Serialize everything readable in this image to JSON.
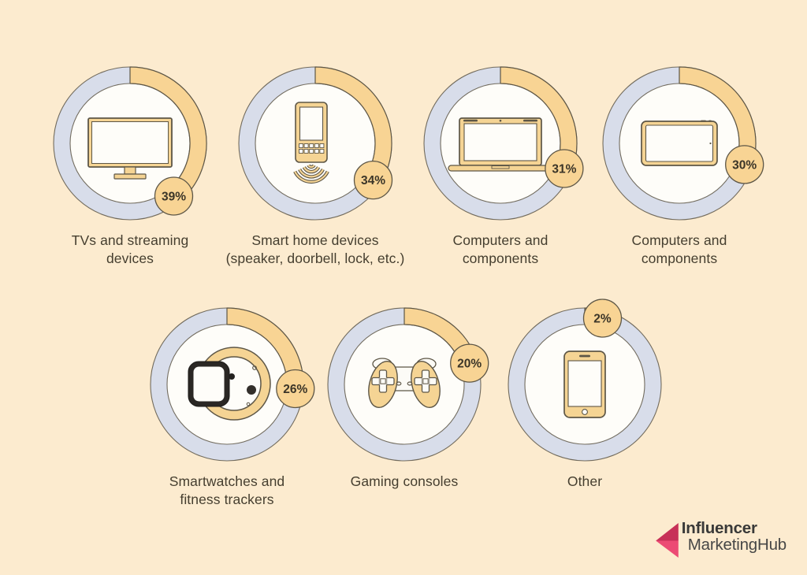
{
  "colors": {
    "background": "#FCEBCF",
    "ring_track": "#D8DDEA",
    "accent_yellow": "#F8D494",
    "icon_yellow": "#F5D494",
    "outline": "#5D5646",
    "inner_circle": "#FEFDF9",
    "label_text": "#453E2F",
    "badge_text": "#3B3528",
    "logo_pink_dark": "#C73158",
    "logo_pink_light": "#EC4B74",
    "logo_text_dark": "#393938",
    "logo_text_light": "#474746"
  },
  "charts": [
    {
      "label": "TVs and streaming\ndevices",
      "value": 39,
      "value_label": "39%",
      "icon": "tv-icon"
    },
    {
      "label": "Smart home devices\n(speaker, doorbell, lock, etc.)",
      "value": 34,
      "value_label": "34%",
      "icon": "smart-home-icon"
    },
    {
      "label": "Computers and\ncomponents",
      "value": 31,
      "value_label": "31%",
      "icon": "laptop-icon"
    },
    {
      "label": "Computers and\ncomponents",
      "value": 30,
      "value_label": "30%",
      "icon": "tablet-icon"
    },
    {
      "label": "Smartwatches and\nfitness trackers",
      "value": 26,
      "value_label": "26%",
      "icon": "smartwatch-icon"
    },
    {
      "label": "Gaming consoles",
      "value": 20,
      "value_label": "20%",
      "icon": "gamepad-icon"
    },
    {
      "label": "Other",
      "value": 2,
      "value_label": "2%",
      "icon": "smartphone-icon"
    }
  ],
  "logo": {
    "line1": "Influencer",
    "line2": "MarketingHub"
  },
  "chart_data": {
    "type": "pie",
    "variant": "multi-donut-progress",
    "unit": "%",
    "categories": [
      "TVs and streaming devices",
      "Smart home devices (speaker, doorbell, lock, etc.)",
      "Computers and components",
      "Computers and components",
      "Smartwatches and fitness trackers",
      "Gaming consoles",
      "Other"
    ],
    "values": [
      39,
      34,
      31,
      30,
      26,
      20,
      2
    ],
    "data_labels": [
      "39%",
      "34%",
      "31%",
      "30%",
      "26%",
      "20%",
      "2%"
    ],
    "title": "",
    "legend": "none",
    "layout": "2 rows: 4 donuts top, 3 donuts bottom; progress arc starts at 12 o'clock clockwise; value badge at arc end"
  }
}
